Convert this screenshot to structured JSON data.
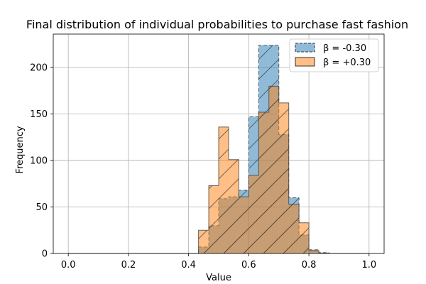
{
  "chart_data": {
    "type": "bar",
    "title": "Final distribution of individual probabilities to purchase fast fashion",
    "xlabel": "Value",
    "ylabel": "Frequency",
    "xlim": [
      -0.05,
      1.05
    ],
    "ylim": [
      0,
      236
    ],
    "xticks": [
      "0.0",
      "0.2",
      "0.4",
      "0.6",
      "0.8",
      "1.0"
    ],
    "yticks": [
      "0",
      "50",
      "100",
      "150",
      "200"
    ],
    "grid": true,
    "legend_position": "top-right",
    "bin_edges": [
      0.0,
      0.033,
      0.067,
      0.1,
      0.133,
      0.167,
      0.2,
      0.233,
      0.267,
      0.3,
      0.333,
      0.367,
      0.4,
      0.433,
      0.467,
      0.5,
      0.533,
      0.567,
      0.6,
      0.633,
      0.667,
      0.7,
      0.733,
      0.767,
      0.8,
      0.833,
      0.867,
      0.9,
      0.933,
      0.967,
      1.0
    ],
    "series": [
      {
        "name": "β = -0.30",
        "color": "#1f77b4",
        "values": [
          0,
          0,
          0,
          0,
          0,
          0,
          0,
          0,
          0,
          0,
          0,
          0,
          0,
          7,
          30,
          59,
          61,
          68,
          147,
          224,
          224,
          128,
          60,
          20,
          4,
          1,
          0,
          0,
          0,
          0
        ]
      },
      {
        "name": "β = +0.30",
        "color": "#ff7f0e",
        "values": [
          0,
          0,
          0,
          0,
          0,
          0,
          0,
          0,
          0,
          0,
          0,
          0,
          0,
          25,
          73,
          136,
          101,
          61,
          84,
          152,
          180,
          162,
          53,
          33,
          3,
          0,
          0,
          0,
          0,
          0
        ]
      }
    ]
  }
}
